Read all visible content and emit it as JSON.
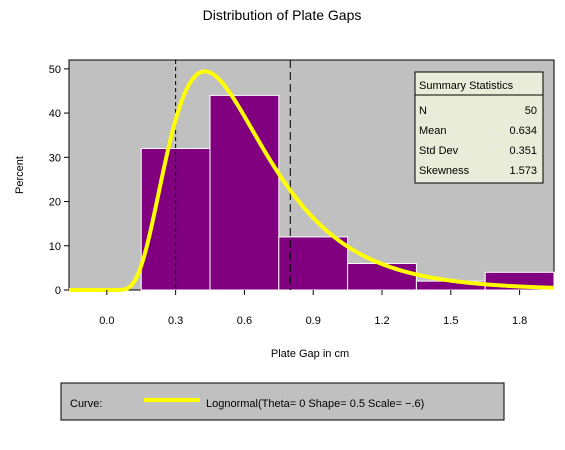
{
  "chart_data": {
    "type": "bar",
    "title": "Distribution of Plate Gaps",
    "xlabel": "Plate Gap in cm",
    "ylabel": "Percent",
    "xlim": [
      -0.165,
      1.95
    ],
    "ylim": [
      0,
      52
    ],
    "x_ticks": [
      "0.0",
      "0.3",
      "0.6",
      "0.9",
      "1.2",
      "1.5",
      "1.8"
    ],
    "x_tick_values": [
      0.0,
      0.3,
      0.6,
      0.9,
      1.2,
      1.5,
      1.8
    ],
    "y_ticks": [
      "0",
      "10",
      "20",
      "30",
      "40",
      "50"
    ],
    "y_tick_values": [
      0,
      10,
      20,
      30,
      40,
      50
    ],
    "bin_width": 0.3,
    "bins": [
      {
        "center": 0.3,
        "value": 32
      },
      {
        "center": 0.6,
        "value": 44
      },
      {
        "center": 0.9,
        "value": 12
      },
      {
        "center": 1.2,
        "value": 6
      },
      {
        "center": 1.5,
        "value": 2
      },
      {
        "center": 1.8,
        "value": 4
      }
    ],
    "reference_lines": [
      0.3,
      0.8
    ],
    "curve": {
      "distribution": "Lognormal",
      "theta": 0,
      "shape": 0.5,
      "scale": -0.6,
      "color": "#ffff00"
    },
    "bar_color": "#800080",
    "plot_background": "#c0c0c0",
    "grid": false
  },
  "summary": {
    "title": "Summary Statistics",
    "rows": [
      {
        "label": "N",
        "value": "50"
      },
      {
        "label": "Mean",
        "value": "0.634"
      },
      {
        "label": "Std Dev",
        "value": "0.351"
      },
      {
        "label": "Skewness",
        "value": "1.573"
      }
    ],
    "background": "#e8ecd8"
  },
  "legend": {
    "heading": "Curve:",
    "label": "Lognormal(Theta= 0 Shape= 0.5 Scale= −.6)",
    "background": "#c0c0c0"
  }
}
